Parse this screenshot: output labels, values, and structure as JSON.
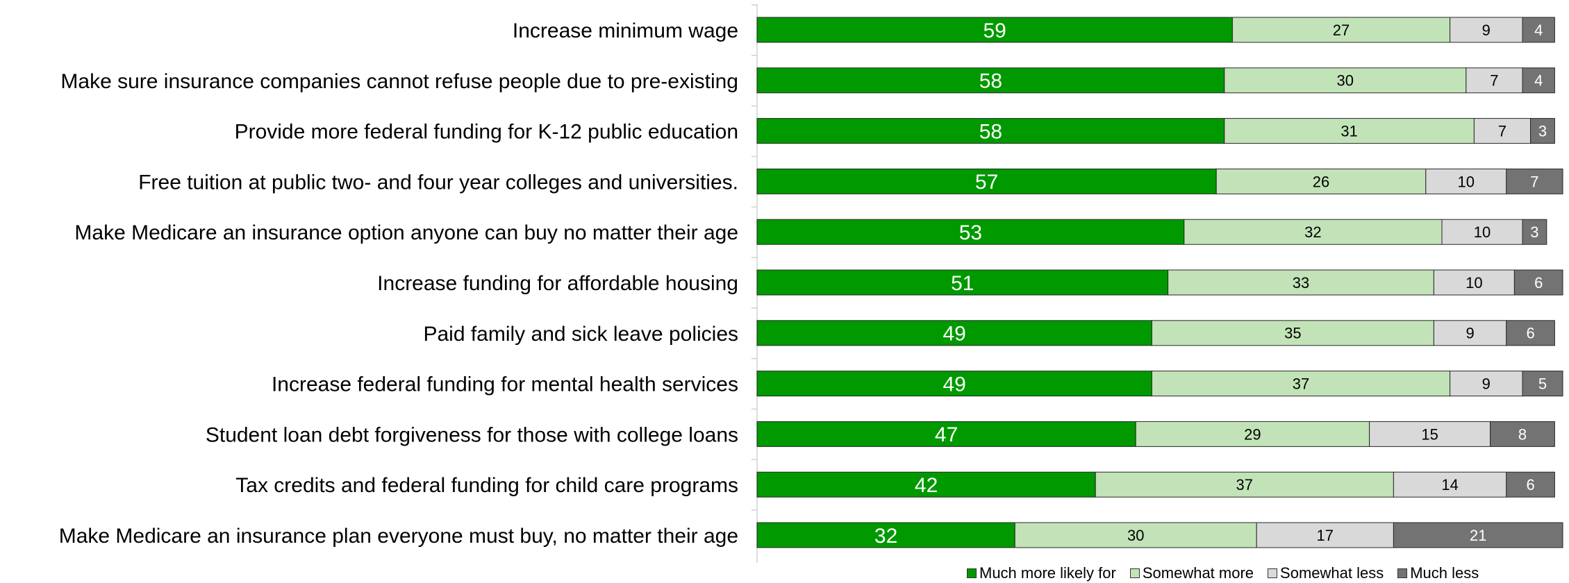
{
  "chart_data": {
    "type": "bar",
    "orientation": "horizontal",
    "stacked": true,
    "categories": [
      "Increase minimum wage",
      "Make sure insurance companies cannot refuse people due to pre-existing",
      "Provide more federal funding for K-12 public education",
      "Free tuition at public two- and four year colleges and universities.",
      "Make Medicare an insurance option anyone can buy no matter their age",
      "Increase funding for affordable housing",
      "Paid family and sick leave policies",
      "Increase federal funding for mental health services",
      "Student loan debt forgiveness for those with college loans",
      "Tax credits and federal funding for child care programs",
      "Make Medicare an insurance plan everyone must buy, no matter their age"
    ],
    "series": [
      {
        "name": "Much more likely for",
        "color": "#009900",
        "label_color": "#ffffff",
        "values": [
          59,
          58,
          58,
          57,
          53,
          51,
          49,
          49,
          47,
          42,
          32
        ]
      },
      {
        "name": "Somewhat more",
        "color": "#c2e3b8",
        "label_color": "#000000",
        "values": [
          27,
          30,
          31,
          26,
          32,
          33,
          35,
          37,
          29,
          37,
          30
        ]
      },
      {
        "name": "Somewhat less",
        "color": "#d9d9d9",
        "label_color": "#000000",
        "values": [
          9,
          7,
          7,
          10,
          10,
          10,
          9,
          9,
          15,
          14,
          17
        ]
      },
      {
        "name": "Much less",
        "color": "#737373",
        "label_color": "#ffffff",
        "values": [
          4,
          4,
          3,
          7,
          3,
          6,
          6,
          5,
          8,
          6,
          21
        ]
      }
    ],
    "xlim": [
      0,
      100
    ],
    "grid": false,
    "legend_position": "bottom-right"
  }
}
